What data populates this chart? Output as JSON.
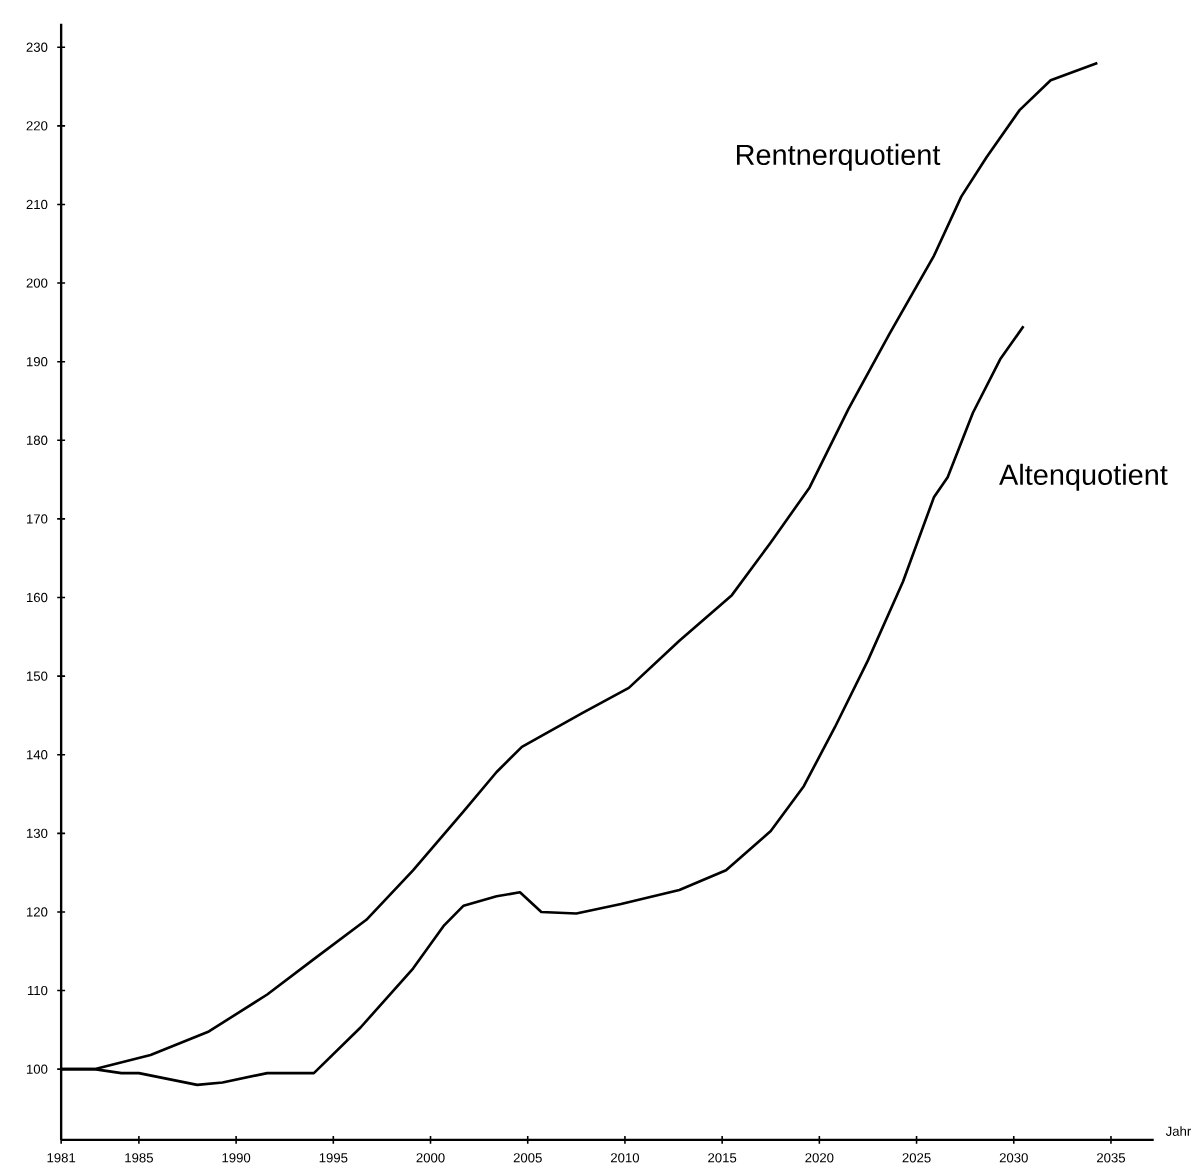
{
  "chart_data": {
    "type": "line",
    "xlabel": "Jahr",
    "xlim": [
      1981,
      2037.2
    ],
    "ylim": [
      91,
      233
    ],
    "xticks": [
      1981,
      1985,
      1990,
      1995,
      2000,
      2005,
      2010,
      2015,
      2020,
      2025,
      2030,
      2035
    ],
    "yticks": [
      100,
      110,
      120,
      130,
      140,
      150,
      160,
      170,
      180,
      190,
      200,
      210,
      220,
      230
    ],
    "grid": false,
    "legend": false,
    "marker": "none",
    "line_style": "solid",
    "series": [
      {
        "name": "Rentnerquotient",
        "color": "#000000",
        "x": [
          1981,
          1982.7,
          1985.6,
          1988.6,
          1991.6,
          1994,
          1996.7,
          1999.1,
          2001.7,
          2003.4,
          2004.7,
          2007.8,
          2010.2,
          2012.8,
          2015.5,
          2017.5,
          2019.5,
          2021.5,
          2023.6,
          2025.9,
          2027.3,
          2028.6,
          2030.3,
          2031.9,
          2034.3
        ],
        "values": [
          100,
          100,
          101.8,
          104.8,
          109.5,
          114,
          119,
          125.3,
          132.8,
          137.8,
          141,
          145.3,
          148.5,
          154.5,
          160.3,
          167,
          174,
          184,
          193.5,
          203.5,
          211,
          216,
          222,
          225.8,
          228
        ]
      },
      {
        "name": "Altenquotient",
        "color": "#000000",
        "x": [
          1981,
          1982.7,
          1984.1,
          1985,
          1988,
          1989.3,
          1991.6,
          1994,
          1996.4,
          1999.1,
          2000.7,
          2001.7,
          2003.4,
          2004.6,
          2005.7,
          2007.5,
          2009.8,
          2012.8,
          2015.2,
          2017.5,
          2019.2,
          2020.8,
          2022.5,
          2024.3,
          2025.9,
          2026.6,
          2027.9,
          2029.3,
          2030.5
        ],
        "values": [
          100,
          100,
          99.5,
          99.5,
          98,
          98.3,
          99.5,
          99.5,
          105.3,
          112.8,
          118.3,
          120.8,
          122,
          122.5,
          120,
          119.8,
          121,
          122.8,
          125.3,
          130.3,
          136,
          143.5,
          152,
          162,
          172.8,
          175.3,
          183.5,
          190.3,
          194.5
        ]
      }
    ]
  }
}
